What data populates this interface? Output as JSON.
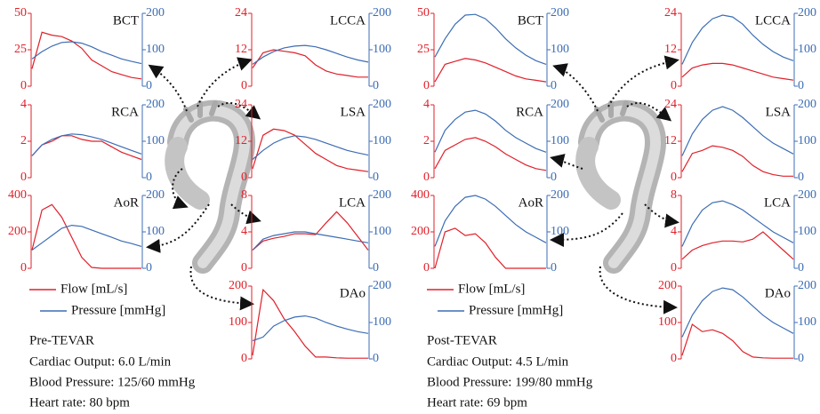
{
  "chart_data": [
    {
      "type": "line",
      "title": "BCT",
      "categories": [
        null,
        null,
        null,
        null,
        null,
        null,
        null,
        null,
        null,
        null,
        null,
        null
      ],
      "ylim": [
        0,
        50
      ],
      "yticks": [
        0,
        25,
        50
      ],
      "y2lim": [
        0,
        200
      ],
      "y2ticks": [
        0,
        100,
        200
      ],
      "series": [
        {
          "name": "Flow [mL/s]",
          "color": "#e0202a",
          "values": [
            12,
            37,
            35,
            34,
            31,
            26,
            18,
            14,
            10,
            8,
            6,
            5
          ]
        },
        {
          "name": "Pressure [mmHg]",
          "color": "#3c6db4",
          "axis": "y2",
          "values": [
            75,
            95,
            110,
            120,
            122,
            118,
            108,
            95,
            85,
            75,
            68,
            62
          ]
        }
      ]
    },
    {
      "type": "line",
      "title": "RCA",
      "categories": [
        null,
        null,
        null,
        null,
        null,
        null,
        null,
        null,
        null,
        null,
        null,
        null
      ],
      "ylim": [
        0,
        4
      ],
      "yticks": [
        0,
        2,
        4
      ],
      "y2lim": [
        0,
        200
      ],
      "y2ticks": [
        0,
        100,
        200
      ],
      "series": [
        {
          "name": "Flow [mL/s]",
          "color": "#e0202a",
          "values": [
            1.2,
            1.8,
            2.0,
            2.3,
            2.3,
            2.1,
            2.0,
            2.0,
            1.7,
            1.4,
            1.2,
            1.0
          ]
        },
        {
          "name": "Pressure [mmHg]",
          "color": "#3c6db4",
          "axis": "y2",
          "values": [
            60,
            90,
            105,
            115,
            120,
            118,
            112,
            105,
            95,
            85,
            75,
            65
          ]
        }
      ]
    },
    {
      "type": "line",
      "title": "AoR",
      "categories": [
        null,
        null,
        null,
        null,
        null,
        null,
        null,
        null,
        null,
        null,
        null,
        null
      ],
      "ylim": [
        0,
        400
      ],
      "yticks": [
        0,
        200,
        400
      ],
      "y2lim": [
        0,
        200
      ],
      "y2ticks": [
        0,
        100,
        200
      ],
      "series": [
        {
          "name": "Flow [mL/s]",
          "color": "#e0202a",
          "values": [
            100,
            320,
            350,
            280,
            170,
            60,
            5,
            0,
            0,
            0,
            0,
            0
          ]
        },
        {
          "name": "Pressure [mmHg]",
          "color": "#3c6db4",
          "axis": "y2",
          "values": [
            50,
            70,
            90,
            110,
            118,
            115,
            105,
            95,
            85,
            75,
            68,
            60
          ]
        }
      ]
    },
    {
      "type": "line",
      "title": "LCCA",
      "categories": [
        null,
        null,
        null,
        null,
        null,
        null,
        null,
        null,
        null,
        null,
        null,
        null
      ],
      "ylim": [
        0,
        24
      ],
      "yticks": [
        0,
        12,
        24
      ],
      "y2lim": [
        0,
        200
      ],
      "y2ticks": [
        0,
        100,
        200
      ],
      "series": [
        {
          "name": "Flow [mL/s]",
          "color": "#e0202a",
          "values": [
            6,
            11,
            12,
            11.5,
            11,
            10,
            7,
            5,
            4,
            3.5,
            3,
            3
          ]
        },
        {
          "name": "Pressure [mmHg]",
          "color": "#3c6db4",
          "axis": "y2",
          "values": [
            60,
            80,
            95,
            105,
            110,
            112,
            108,
            100,
            90,
            80,
            72,
            66
          ]
        }
      ]
    },
    {
      "type": "line",
      "title": "LSA",
      "categories": [
        null,
        null,
        null,
        null,
        null,
        null,
        null,
        null,
        null,
        null,
        null,
        null
      ],
      "ylim": [
        0,
        24
      ],
      "yticks": [
        0,
        12,
        24
      ],
      "y2lim": [
        0,
        200
      ],
      "y2ticks": [
        0,
        100,
        200
      ],
      "series": [
        {
          "name": "Flow [mL/s]",
          "color": "#e0202a",
          "values": [
            3,
            14,
            16,
            15.5,
            14,
            11,
            8,
            6,
            4,
            3,
            2.5,
            2
          ]
        },
        {
          "name": "Pressure [mmHg]",
          "color": "#3c6db4",
          "axis": "y2",
          "values": [
            50,
            75,
            95,
            108,
            115,
            112,
            105,
            95,
            85,
            75,
            68,
            62
          ]
        }
      ]
    },
    {
      "type": "line",
      "title": "LCA",
      "categories": [
        null,
        null,
        null,
        null,
        null,
        null,
        null,
        null,
        null,
        null,
        null,
        null
      ],
      "ylim": [
        0,
        8
      ],
      "yticks": [
        0,
        4,
        8
      ],
      "y2lim": [
        0,
        200
      ],
      "y2ticks": [
        0,
        100,
        200
      ],
      "series": [
        {
          "name": "Flow [mL/s]",
          "color": "#e0202a",
          "values": [
            2,
            3,
            3.3,
            3.5,
            3.8,
            3.8,
            3.7,
            5,
            6.2,
            5,
            3.5,
            2
          ]
        },
        {
          "name": "Pressure [mmHg]",
          "color": "#3c6db4",
          "axis": "y2",
          "values": [
            50,
            80,
            90,
            95,
            100,
            100,
            95,
            90,
            85,
            80,
            75,
            70
          ]
        }
      ]
    },
    {
      "type": "line",
      "title": "DAo",
      "categories": [
        null,
        null,
        null,
        null,
        null,
        null,
        null,
        null,
        null,
        null,
        null,
        null
      ],
      "ylim": [
        0,
        200
      ],
      "yticks": [
        0,
        100,
        200
      ],
      "y2lim": [
        0,
        200
      ],
      "y2ticks": [
        0,
        100,
        200
      ],
      "series": [
        {
          "name": "Flow [mL/s]",
          "color": "#e0202a",
          "values": [
            10,
            190,
            160,
            110,
            75,
            35,
            5,
            5,
            3,
            2,
            2,
            2
          ]
        },
        {
          "name": "Pressure [mmHg]",
          "color": "#3c6db4",
          "axis": "y2",
          "values": [
            50,
            60,
            90,
            105,
            115,
            118,
            112,
            100,
            90,
            82,
            75,
            70
          ]
        }
      ]
    },
    {
      "type": "line",
      "title": "BCT",
      "categories": [
        null,
        null,
        null,
        null,
        null,
        null,
        null,
        null,
        null,
        null,
        null,
        null
      ],
      "ylim": [
        0,
        50
      ],
      "yticks": [
        0,
        25,
        50
      ],
      "y2lim": [
        0,
        200
      ],
      "y2ticks": [
        0,
        100,
        200
      ],
      "series": [
        {
          "name": "Flow [mL/s]",
          "color": "#e0202a",
          "values": [
            3,
            15,
            17,
            19,
            18,
            16,
            13,
            10,
            7,
            5,
            4,
            3
          ]
        },
        {
          "name": "Pressure [mmHg]",
          "color": "#3c6db4",
          "axis": "y2",
          "values": [
            80,
            130,
            170,
            195,
            197,
            185,
            160,
            130,
            105,
            85,
            70,
            60
          ]
        }
      ]
    },
    {
      "type": "line",
      "title": "RCA",
      "categories": [
        null,
        null,
        null,
        null,
        null,
        null,
        null,
        null,
        null,
        null,
        null,
        null
      ],
      "ylim": [
        0,
        4
      ],
      "yticks": [
        0,
        2,
        4
      ],
      "y2lim": [
        0,
        200
      ],
      "y2ticks": [
        0,
        100,
        200
      ],
      "series": [
        {
          "name": "Flow [mL/s]",
          "color": "#e0202a",
          "values": [
            0.5,
            1.5,
            1.8,
            2.1,
            2.2,
            2.0,
            1.7,
            1.3,
            1.0,
            0.7,
            0.5,
            0.4
          ]
        },
        {
          "name": "Pressure [mmHg]",
          "color": "#3c6db4",
          "axis": "y2",
          "values": [
            70,
            130,
            160,
            180,
            185,
            175,
            155,
            130,
            110,
            95,
            80,
            70
          ]
        }
      ]
    },
    {
      "type": "line",
      "title": "AoR",
      "categories": [
        null,
        null,
        null,
        null,
        null,
        null,
        null,
        null,
        null,
        null,
        null,
        null
      ],
      "ylim": [
        0,
        400
      ],
      "yticks": [
        0,
        200,
        400
      ],
      "y2lim": [
        0,
        200
      ],
      "y2ticks": [
        0,
        100,
        200
      ],
      "series": [
        {
          "name": "Flow [mL/s]",
          "color": "#e0202a",
          "values": [
            0,
            200,
            220,
            180,
            190,
            140,
            60,
            0,
            0,
            0,
            0,
            0
          ]
        },
        {
          "name": "Pressure [mmHg]",
          "color": "#3c6db4",
          "axis": "y2",
          "values": [
            60,
            130,
            170,
            195,
            200,
            190,
            170,
            145,
            120,
            100,
            85,
            70
          ]
        }
      ]
    },
    {
      "type": "line",
      "title": "LCCA",
      "categories": [
        null,
        null,
        null,
        null,
        null,
        null,
        null,
        null,
        null,
        null,
        null,
        null
      ],
      "ylim": [
        0,
        24
      ],
      "yticks": [
        0,
        12,
        24
      ],
      "y2lim": [
        0,
        200
      ],
      "y2ticks": [
        0,
        100,
        200
      ],
      "series": [
        {
          "name": "Flow [mL/s]",
          "color": "#e0202a",
          "values": [
            3,
            6,
            7,
            7.5,
            7.5,
            7,
            6,
            5,
            4,
            3,
            2.5,
            2
          ]
        },
        {
          "name": "Pressure [mmHg]",
          "color": "#3c6db4",
          "axis": "y2",
          "values": [
            60,
            120,
            160,
            185,
            195,
            190,
            170,
            140,
            115,
            95,
            80,
            70
          ]
        }
      ]
    },
    {
      "type": "line",
      "title": "LSA",
      "categories": [
        null,
        null,
        null,
        null,
        null,
        null,
        null,
        null,
        null,
        null,
        null,
        null
      ],
      "ylim": [
        0,
        24
      ],
      "yticks": [
        0,
        12,
        24
      ],
      "y2lim": [
        0,
        200
      ],
      "y2ticks": [
        0,
        100,
        200
      ],
      "series": [
        {
          "name": "Flow [mL/s]",
          "color": "#e0202a",
          "values": [
            2,
            8,
            9,
            10.5,
            10,
            9,
            7,
            4,
            2,
            1,
            0.5,
            0.5
          ]
        },
        {
          "name": "Pressure [mmHg]",
          "color": "#3c6db4",
          "axis": "y2",
          "values": [
            60,
            120,
            160,
            185,
            195,
            185,
            165,
            140,
            115,
            95,
            80,
            65
          ]
        }
      ]
    },
    {
      "type": "line",
      "title": "LCA",
      "categories": [
        null,
        null,
        null,
        null,
        null,
        null,
        null,
        null,
        null,
        null,
        null,
        null
      ],
      "ylim": [
        0,
        8
      ],
      "yticks": [
        0,
        4,
        8
      ],
      "y2lim": [
        0,
        200
      ],
      "y2ticks": [
        0,
        100,
        200
      ],
      "series": [
        {
          "name": "Flow [mL/s]",
          "color": "#e0202a",
          "values": [
            1,
            2,
            2.5,
            2.8,
            3,
            3,
            2.9,
            3.2,
            4,
            3,
            2,
            1
          ]
        },
        {
          "name": "Pressure [mmHg]",
          "color": "#3c6db4",
          "axis": "y2",
          "values": [
            60,
            120,
            160,
            180,
            185,
            175,
            160,
            140,
            120,
            100,
            85,
            70
          ]
        }
      ]
    },
    {
      "type": "line",
      "title": "DAo",
      "categories": [
        null,
        null,
        null,
        null,
        null,
        null,
        null,
        null,
        null,
        null,
        null,
        null
      ],
      "ylim": [
        0,
        200
      ],
      "yticks": [
        0,
        100,
        200
      ],
      "y2lim": [
        0,
        200
      ],
      "y2ticks": [
        0,
        100,
        200
      ],
      "series": [
        {
          "name": "Flow [mL/s]",
          "color": "#e0202a",
          "values": [
            10,
            95,
            75,
            80,
            70,
            50,
            20,
            5,
            3,
            2,
            2,
            2
          ]
        },
        {
          "name": "Pressure [mmHg]",
          "color": "#3c6db4",
          "axis": "y2",
          "values": [
            60,
            120,
            160,
            185,
            195,
            190,
            170,
            145,
            120,
            100,
            85,
            70
          ]
        }
      ]
    }
  ],
  "panels": [
    {
      "label": "Pre-TEVAR",
      "info": [
        "Cardiac Output: 6.0 L/min",
        "Blood Pressure: 125/60 mmHg",
        "Heart rate: 80 bpm"
      ]
    },
    {
      "label": "Post-TEVAR",
      "info": [
        "Cardiac Output: 4.5 L/min",
        "Blood Pressure: 199/80 mmHg",
        "Heart rate: 69 bpm"
      ]
    }
  ]
}
